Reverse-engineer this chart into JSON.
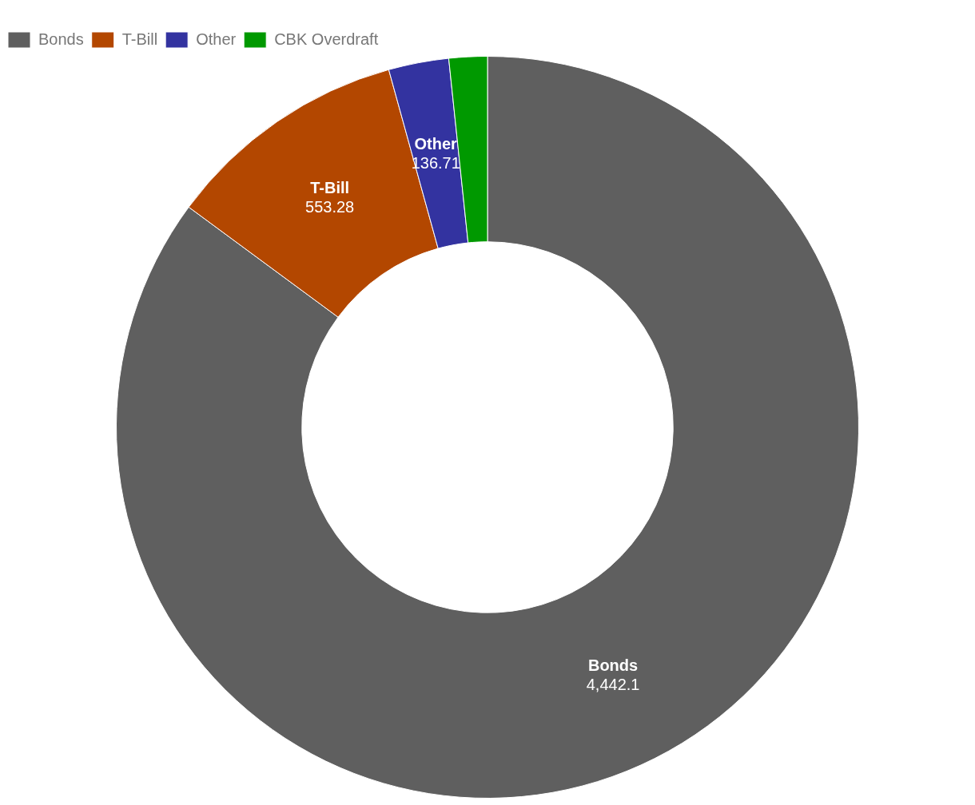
{
  "chart_data": {
    "type": "donut",
    "categories": [
      "Bonds",
      "T-Bill",
      "Other",
      "CBK Overdraft"
    ],
    "values": [
      4442.1,
      553.28,
      136.71,
      87
    ],
    "value_labels": [
      "4,442.1",
      "553.28",
      "136.71",
      null
    ],
    "colors": [
      "#5f5f5f",
      "#b34700",
      "#3333a0",
      "#009900"
    ],
    "legend": "top left"
  }
}
